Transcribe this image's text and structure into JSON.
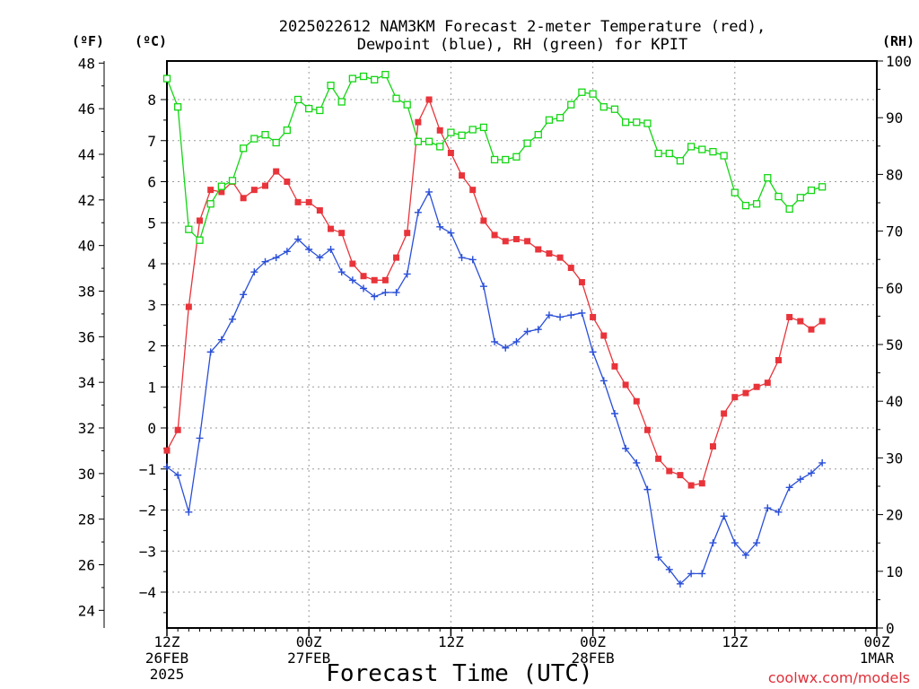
{
  "chart_data": {
    "type": "line",
    "title_line1": "2025022612 NAM3KM Forecast 2-meter Temperature (red),",
    "title_line2": "Dewpoint (blue), RH (green) for KPIT",
    "units": {
      "f": "(ºF)",
      "c": "(ºC)",
      "rh": "(RH)"
    },
    "xlabel": "Forecast Time (UTC)",
    "credit": "coolwx.com/models",
    "x_hours": [
      0,
      1,
      2,
      3,
      4,
      5,
      6,
      7,
      8,
      9,
      10,
      11,
      12,
      13,
      14,
      15,
      16,
      17,
      18,
      19,
      20,
      21,
      22,
      23,
      24,
      25,
      26,
      27,
      28,
      29,
      30,
      31,
      32,
      33,
      34,
      35,
      36,
      37,
      38,
      39,
      40,
      41,
      42,
      43,
      44,
      45,
      46,
      47,
      48,
      49,
      50,
      51,
      52,
      53,
      54,
      55,
      56,
      57,
      58,
      59,
      60,
      61,
      62,
      63,
      64
    ],
    "xlim_hours": [
      0,
      64
    ],
    "x_ticks": [
      {
        "hour": 0,
        "labels": [
          "12Z",
          "26FEB",
          "2025"
        ]
      },
      {
        "hour": 13,
        "labels": [
          "00Z",
          "27FEB"
        ]
      },
      {
        "hour": 26,
        "labels": [
          "12Z"
        ]
      },
      {
        "hour": 39,
        "labels": [
          "00Z",
          "28FEB"
        ]
      },
      {
        "hour": 52,
        "labels": [
          "12Z"
        ]
      },
      {
        "hour": 65,
        "labels": [
          "00Z",
          "1MAR"
        ]
      }
    ],
    "y_left_f": {
      "ticks": [
        24,
        26,
        28,
        30,
        32,
        34,
        36,
        38,
        40,
        42,
        44,
        46,
        48
      ],
      "label": "(ºF)"
    },
    "y_left_c": {
      "ticks": [
        -4,
        -3,
        -2,
        -1,
        0,
        1,
        2,
        3,
        4,
        5,
        6,
        7,
        8
      ],
      "ylim": [
        -4.7,
        9.0
      ]
    },
    "y_right_rh": {
      "ticks": [
        0,
        10,
        20,
        30,
        40,
        50,
        60,
        70,
        80,
        90,
        100
      ],
      "ylim": [
        0,
        100
      ]
    },
    "grid": true,
    "series": [
      {
        "name": "Temperature (red)",
        "axis": "c",
        "color": "#e8343a",
        "marker": "square-filled",
        "values": [
          -0.55,
          -0.05,
          2.95,
          5.05,
          5.8,
          5.75,
          6.0,
          5.6,
          5.8,
          5.9,
          6.25,
          6.0,
          5.5,
          5.5,
          5.3,
          4.85,
          4.75,
          4.0,
          3.7,
          3.6,
          3.6,
          4.15,
          4.75,
          7.45,
          8.0,
          7.25,
          6.7,
          6.15,
          5.8,
          5.05,
          4.7,
          4.55,
          4.6,
          4.55,
          4.35,
          4.25,
          4.15,
          3.9,
          3.55,
          2.7,
          2.25,
          1.5,
          1.05,
          0.65,
          -0.05,
          -0.75,
          -1.05,
          -1.15,
          -1.4,
          -1.35,
          -0.45,
          0.35,
          0.75,
          0.85,
          1.0,
          1.1,
          1.65,
          2.7,
          2.6,
          2.4,
          2.6
        ]
      },
      {
        "name": "Dewpoint (blue)",
        "axis": "c",
        "color": "#2a4fd8",
        "marker": "plus",
        "values": [
          -0.95,
          -1.15,
          -2.05,
          -0.25,
          1.85,
          2.15,
          2.65,
          3.25,
          3.8,
          4.05,
          4.15,
          4.3,
          4.6,
          4.35,
          4.15,
          4.35,
          3.8,
          3.6,
          3.4,
          3.2,
          3.3,
          3.3,
          3.75,
          5.25,
          5.75,
          4.9,
          4.75,
          4.15,
          4.1,
          3.45,
          2.1,
          1.95,
          2.1,
          2.35,
          2.4,
          2.75,
          2.7,
          2.75,
          2.8,
          1.85,
          1.15,
          0.35,
          -0.5,
          -0.85,
          -1.5,
          -3.15,
          -3.45,
          -3.8,
          -3.55,
          -3.55,
          -2.8,
          -2.15,
          -2.8,
          -3.1,
          -2.8,
          -1.95,
          -2.05,
          -1.45,
          -1.25,
          -1.1,
          -0.85
        ]
      },
      {
        "name": "RH (green)",
        "axis": "rh",
        "color": "#13d613",
        "marker": "square-open",
        "values": [
          96.9,
          91.9,
          70.3,
          68.4,
          74.8,
          77.9,
          78.9,
          84.6,
          86.3,
          87.0,
          85.6,
          87.8,
          93.2,
          91.6,
          91.3,
          95.7,
          92.8,
          96.9,
          97.3,
          96.7,
          97.6,
          93.4,
          92.3,
          85.8,
          85.8,
          84.9,
          87.4,
          86.9,
          87.9,
          88.3,
          82.6,
          82.6,
          83.1,
          85.5,
          87.0,
          89.6,
          90.0,
          92.3,
          94.5,
          94.2,
          91.9,
          91.5,
          89.2,
          89.2,
          89.0,
          83.7,
          83.7,
          82.4,
          84.9,
          84.4,
          84.0,
          83.3,
          76.8,
          74.5,
          74.8,
          79.4,
          76.1,
          73.9,
          75.9,
          77.2,
          77.8
        ]
      }
    ]
  }
}
